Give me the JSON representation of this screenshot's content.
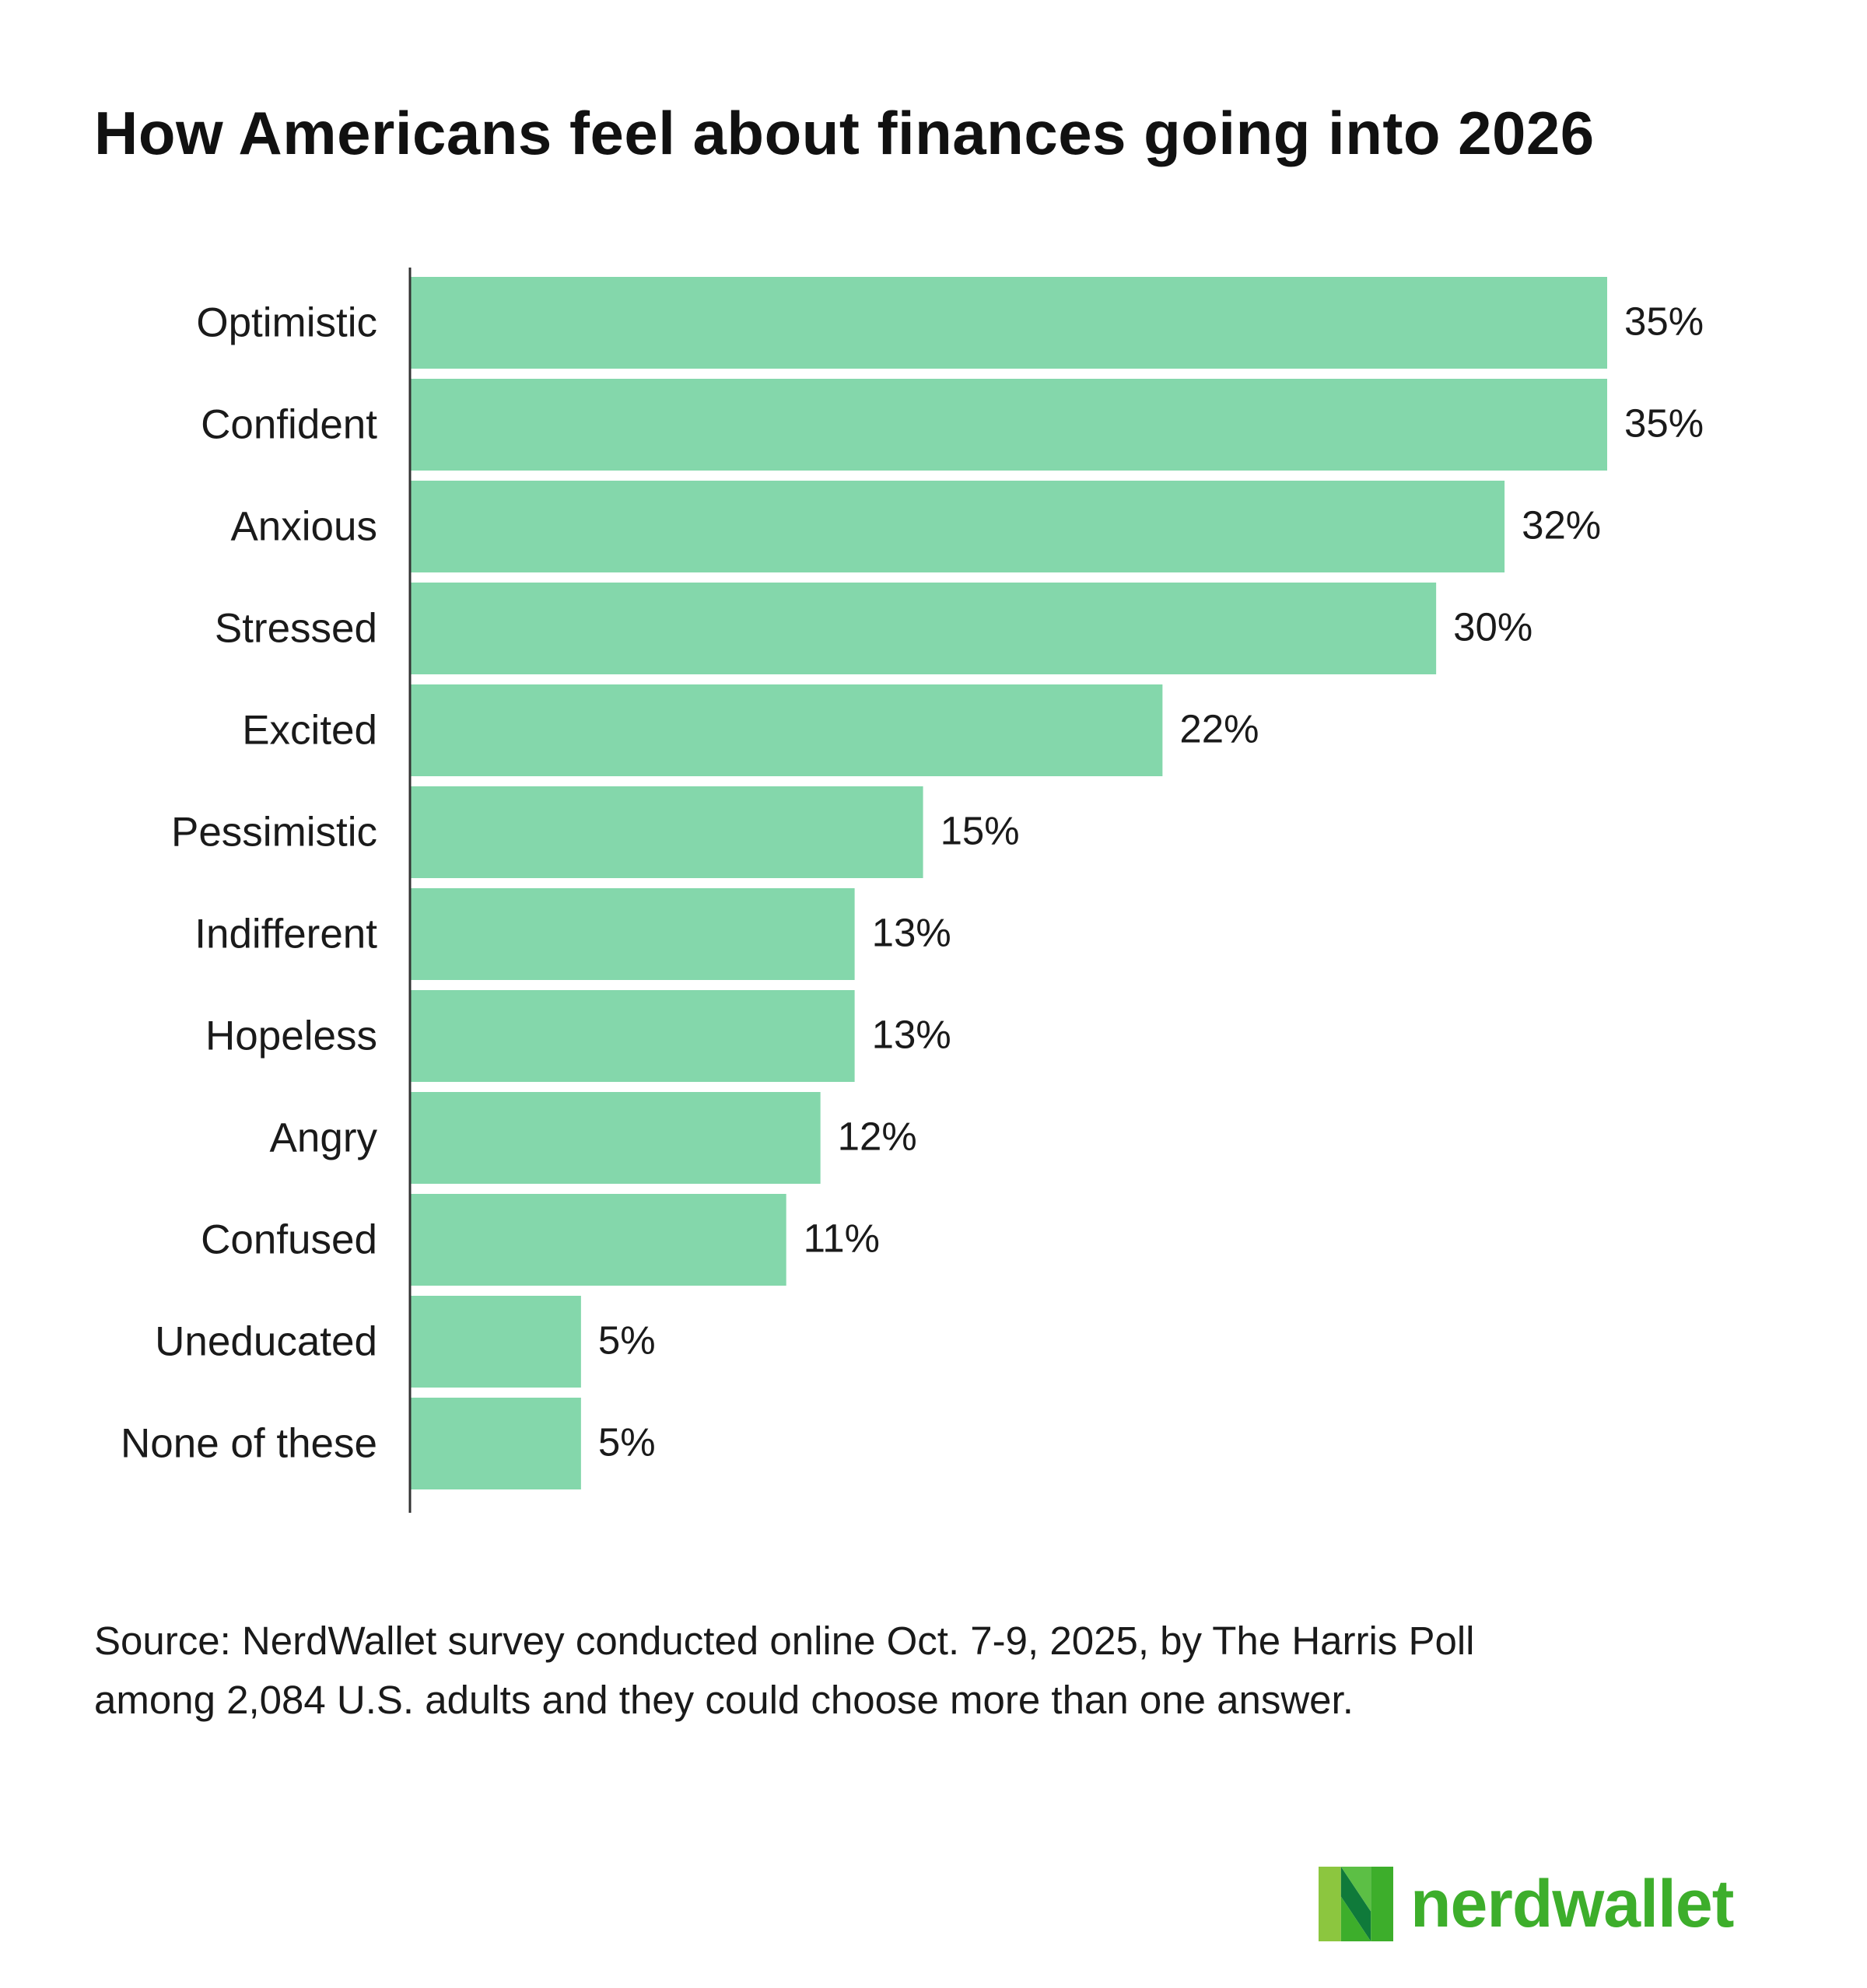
{
  "title": "How Americans feel about finances going into 2026",
  "chart_data": {
    "type": "bar",
    "orientation": "horizontal",
    "title": "How Americans feel about finances going into 2026",
    "categories": [
      "Optimistic",
      "Confident",
      "Anxious",
      "Stressed",
      "Excited",
      "Pessimistic",
      "Indifferent",
      "Hopeless",
      "Angry",
      "Confused",
      "Uneducated",
      "None of these"
    ],
    "values": [
      35,
      35,
      32,
      30,
      22,
      15,
      13,
      13,
      12,
      11,
      5,
      5
    ],
    "value_labels": [
      "35%",
      "35%",
      "32%",
      "30%",
      "22%",
      "15%",
      "13%",
      "13%",
      "12%",
      "11%",
      "5%",
      "5%"
    ],
    "unit": "%",
    "xlim": [
      0,
      35
    ],
    "grid": false,
    "legend": "none",
    "bar_color": "#84d7ab",
    "axis_color": "#333333"
  },
  "source": {
    "line1": "Source: NerdWallet survey conducted online Oct. 7-9, 2025, by The Harris Poll",
    "line2": "among 2,084 U.S. adults and they could choose more than one answer."
  },
  "logo": {
    "text": "nerdwallet",
    "icon": "nerdwallet-n-logo-icon",
    "color": "#3dae2b"
  }
}
